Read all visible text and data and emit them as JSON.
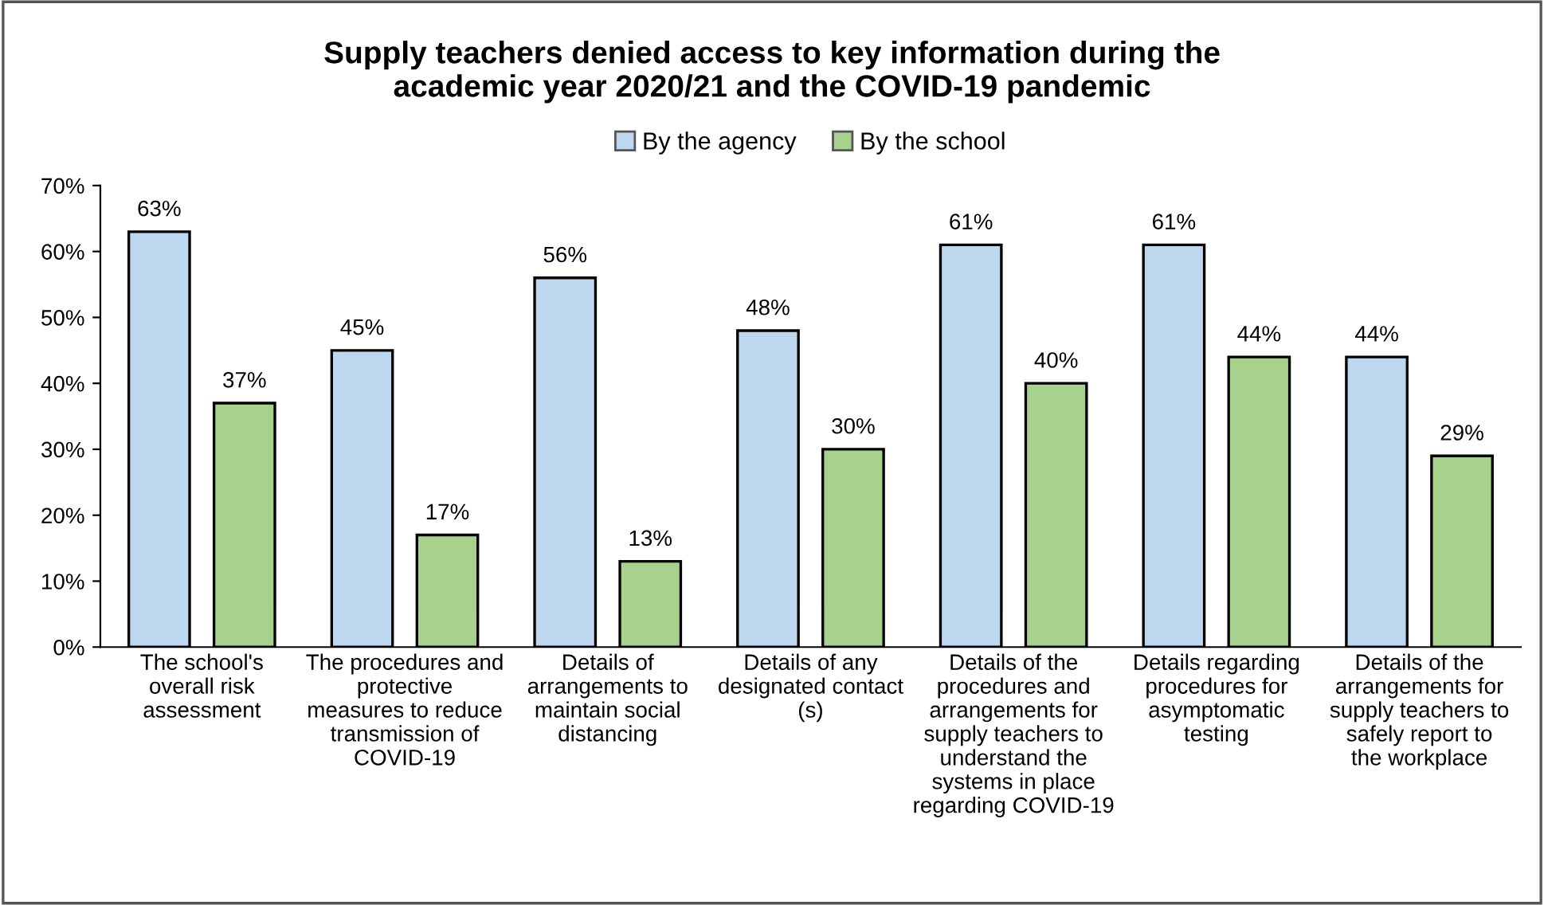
{
  "chart_data": {
    "type": "bar",
    "title": "Supply teachers denied access to key information during the\nacademic year 2020/21 and the COVID-19 pandemic",
    "categories": [
      "The school's overall risk assessment",
      "The procedures and protective measures to reduce transmission of COVID-19",
      "Details of arrangements to maintain social distancing",
      "Details of any designated contact (s)",
      "Details of the procedures and arrangements for supply teachers to understand the systems in place regarding COVID-19",
      "Details regarding procedures for asymptomatic testing",
      "Details of the arrangements for supply teachers to safely report to the workplace"
    ],
    "series": [
      {
        "name": "By the agency",
        "color": "#bdd7ee",
        "values": [
          63,
          45,
          56,
          48,
          61,
          61,
          44
        ],
        "value_labels": [
          "63%",
          "45%",
          "56%",
          "48%",
          "61%",
          "61%",
          "44%"
        ]
      },
      {
        "name": "By the school",
        "color": "#a9d18e",
        "values": [
          37,
          17,
          13,
          30,
          40,
          44,
          29
        ],
        "value_labels": [
          "37%",
          "17%",
          "13%",
          "30%",
          "40%",
          "44%",
          "29%"
        ]
      }
    ],
    "ylim": [
      0,
      70
    ],
    "yticks": [
      {
        "value": 0,
        "label": "0%"
      },
      {
        "value": 10,
        "label": "10%"
      },
      {
        "value": 20,
        "label": "20%"
      },
      {
        "value": 30,
        "label": "30%"
      },
      {
        "value": 40,
        "label": "40%"
      },
      {
        "value": 50,
        "label": "50%"
      },
      {
        "value": 60,
        "label": "60%"
      },
      {
        "value": 70,
        "label": "70%"
      }
    ],
    "legend": "top",
    "grid": false
  }
}
